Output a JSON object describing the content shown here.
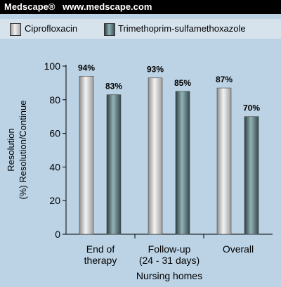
{
  "header": {
    "brand": "Medscape®",
    "url": "www.medscape.com"
  },
  "colors": {
    "background": "#bcd3e5",
    "legend_background": "#d6e3ed",
    "cipro": "#c8c8c8",
    "tmp": "#5f7f84"
  },
  "chart_data": {
    "type": "bar",
    "categories": [
      [
        "End of",
        "therapy"
      ],
      [
        "Follow-up",
        "(24 - 31 days)"
      ],
      [
        "Overall"
      ]
    ],
    "xlabel": "Nursing homes",
    "ylabel": [
      "Resolution",
      "(%) Resolution/Continue"
    ],
    "ylim": [
      0,
      100
    ],
    "yticks": [
      0,
      20,
      40,
      60,
      80,
      100
    ],
    "legend": "top",
    "series": [
      {
        "name": "Ciprofloxacin",
        "values": [
          94,
          93,
          87
        ],
        "labels": [
          "94%",
          "93%",
          "87%"
        ]
      },
      {
        "name": "Trimethoprim-sulfamethoxazole",
        "values": [
          83,
          85,
          70
        ],
        "labels": [
          "83%",
          "85%",
          "70%"
        ]
      }
    ]
  }
}
